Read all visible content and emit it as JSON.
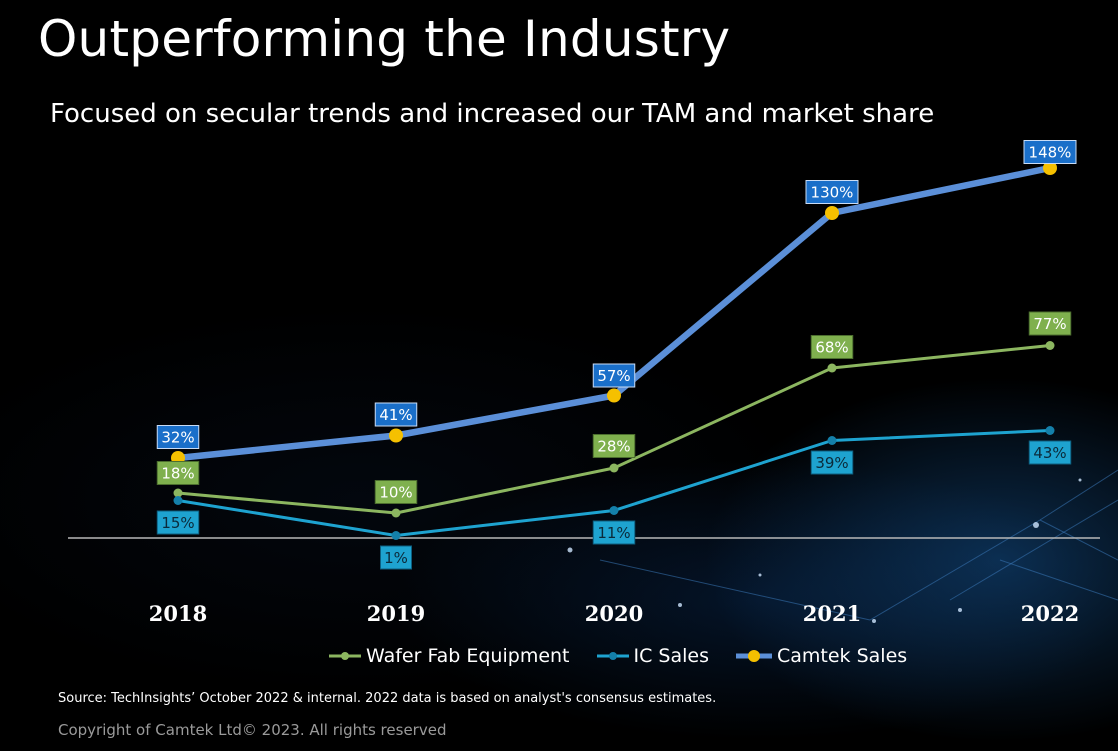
{
  "slide": {
    "title": "Outperforming the Industry",
    "subtitle": "Focused on secular trends and increased our TAM and market share",
    "source": "Source: TechInsights’ October 2022 & internal. 2022 data is based on analyst's consensus estimates.",
    "copyright": "Copyright of Camtek Ltd© 2023. All rights reserved"
  },
  "colors": {
    "wafer": "#8cb660",
    "ic": "#1ea3d0",
    "camtek_line": "#5b8fd8",
    "camtek_marker": "#f5c000",
    "camtek_label_bg": "#1a6fc9",
    "wafer_label_bg": "#7fb04e",
    "ic_label_bg": "#1ea3d0"
  },
  "chart_data": {
    "type": "line",
    "title": "",
    "categories": [
      "2018",
      "2019",
      "2020",
      "2021",
      "2022"
    ],
    "ylim": [
      0,
      148
    ],
    "series": [
      {
        "key": "wafer",
        "name": "Wafer Fab Equipment",
        "values": [
          18,
          10,
          28,
          68,
          77
        ],
        "labels": [
          "18%",
          "10%",
          "28%",
          "68%",
          "77%"
        ]
      },
      {
        "key": "ic",
        "name": "IC Sales",
        "values": [
          15,
          1,
          11,
          39,
          43
        ],
        "labels": [
          "15%",
          "1%",
          "11%",
          "39%",
          "43%"
        ]
      },
      {
        "key": "camtek",
        "name": "Camtek Sales",
        "values": [
          32,
          41,
          57,
          130,
          148
        ],
        "labels": [
          "32%",
          "41%",
          "57%",
          "130%",
          "148%"
        ]
      }
    ]
  }
}
